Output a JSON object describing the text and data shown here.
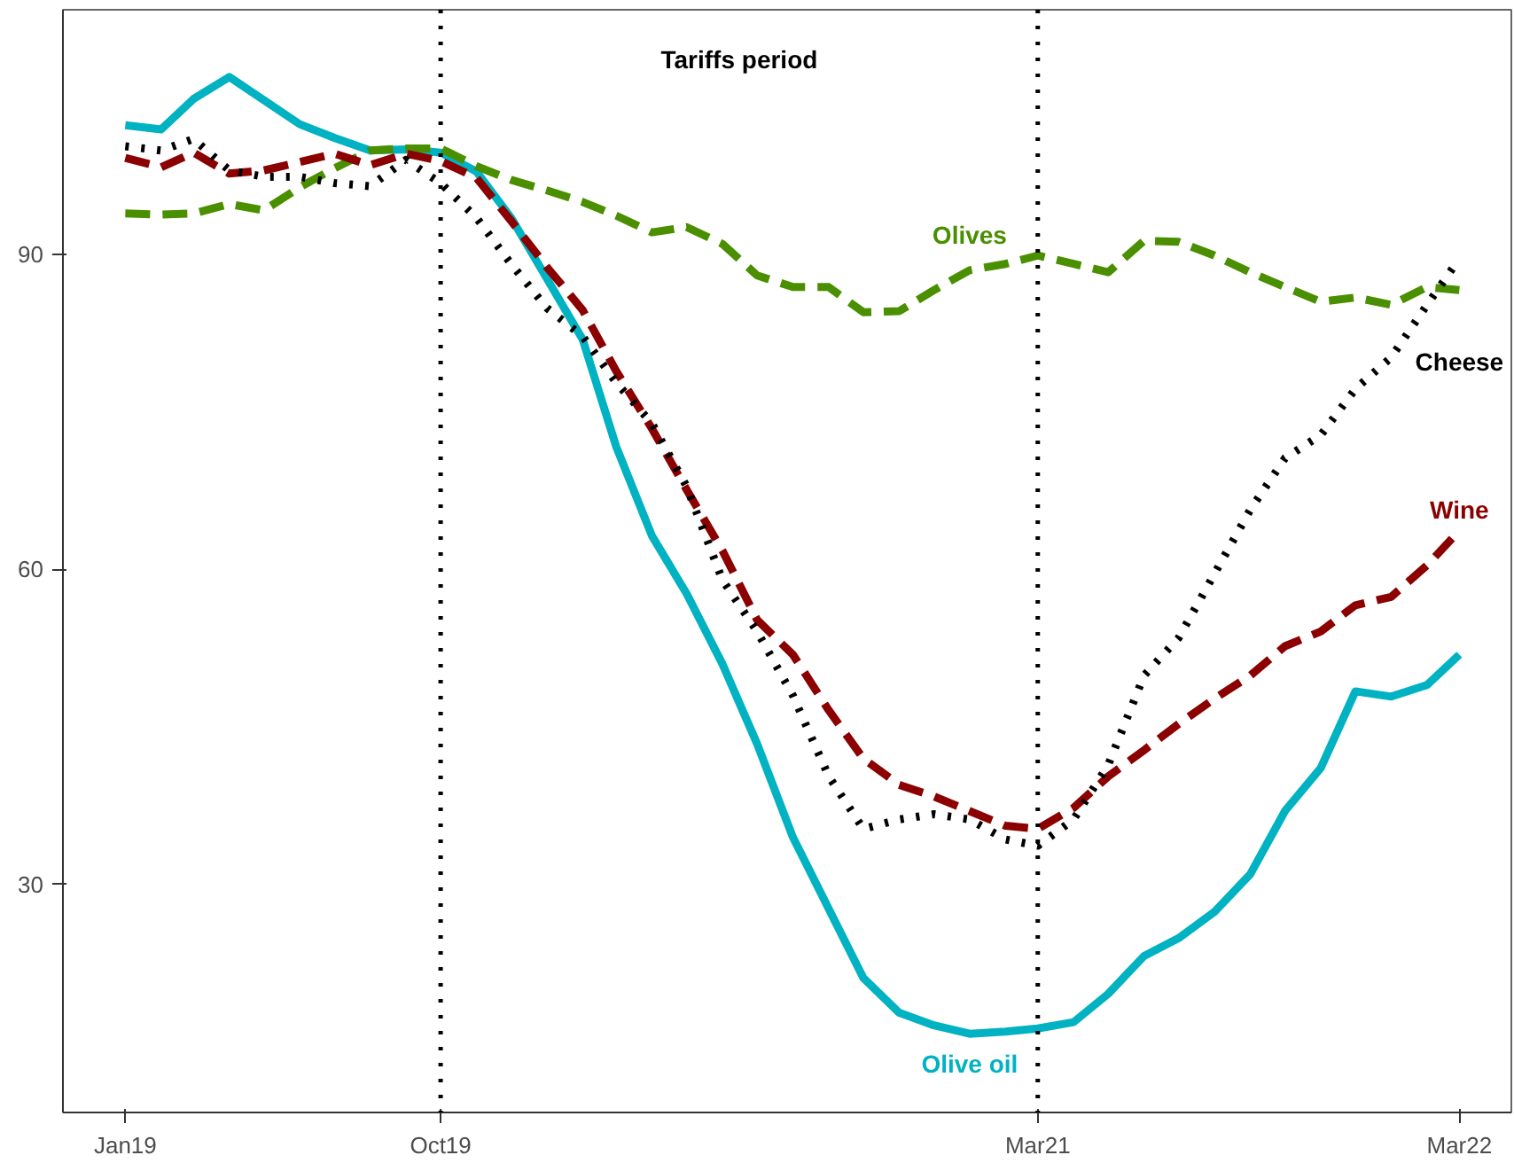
{
  "chart_data": {
    "type": "line",
    "x": [
      "2019-01",
      "2019-02",
      "2019-03",
      "2019-04",
      "2019-05",
      "2019-06",
      "2019-07",
      "2019-08",
      "2019-09",
      "2019-10",
      "2019-11",
      "2019-12",
      "2020-01",
      "2020-02",
      "2020-03",
      "2020-04",
      "2020-05",
      "2020-06",
      "2020-07",
      "2020-08",
      "2020-09",
      "2020-10",
      "2020-11",
      "2020-12",
      "2021-01",
      "2021-02",
      "2021-03",
      "2021-04",
      "2021-05",
      "2021-06",
      "2021-07",
      "2021-08",
      "2021-09",
      "2021-10",
      "2021-11",
      "2021-12",
      "2022-01",
      "2022-02",
      "2022-03"
    ],
    "series": [
      {
        "name": "Olive oil",
        "color": "#00b2c2",
        "line_style": "solid",
        "values": [
          102.3,
          101.9,
          104.8,
          106.9,
          104.7,
          102.4,
          101.1,
          99.9,
          100.0,
          99.7,
          97.9,
          93.5,
          87.7,
          81.9,
          71.7,
          63.2,
          57.7,
          51.0,
          43.4,
          34.5,
          27.7,
          21.1,
          17.8,
          16.6,
          15.8,
          16.0,
          16.3,
          16.9,
          19.6,
          23.2,
          24.9,
          27.4,
          31.0,
          37.0,
          41.1,
          48.4,
          47.9,
          49.0,
          51.9
        ]
      },
      {
        "name": "Olives",
        "color": "#4a8f00",
        "line_style": "dashed",
        "values": [
          93.9,
          93.8,
          93.9,
          94.8,
          94.2,
          96.4,
          98.2,
          99.9,
          100.1,
          100.1,
          98.4,
          97.1,
          96.1,
          95.0,
          93.7,
          92.1,
          92.6,
          91.0,
          88.0,
          86.9,
          86.9,
          84.5,
          84.6,
          86.6,
          88.5,
          89.1,
          89.9,
          89.1,
          88.3,
          91.3,
          91.2,
          89.9,
          88.3,
          86.9,
          85.5,
          85.9,
          85.2,
          86.9,
          86.6
        ]
      },
      {
        "name": "Wine",
        "color": "#8b0000",
        "line_style": "dashed",
        "values": [
          99.2,
          98.3,
          99.7,
          97.7,
          98.0,
          98.8,
          99.6,
          98.5,
          99.6,
          98.9,
          97.3,
          93.2,
          88.8,
          84.7,
          78.9,
          73.4,
          67.6,
          61.8,
          55.2,
          51.9,
          46.6,
          42.0,
          39.5,
          38.4,
          37.0,
          35.6,
          35.3,
          37.3,
          40.3,
          42.8,
          45.3,
          47.7,
          49.9,
          52.7,
          54.1,
          56.6,
          57.4,
          60.4,
          63.7
        ]
      },
      {
        "name": "Cheese",
        "color": "#000000",
        "line_style": "dotted",
        "values": [
          100.3,
          99.9,
          101.0,
          98.0,
          97.4,
          97.4,
          96.8,
          96.5,
          99.0,
          96.8,
          93.5,
          89.1,
          84.9,
          82.2,
          77.8,
          73.9,
          67.9,
          59.0,
          54.1,
          48.0,
          40.3,
          35.3,
          36.2,
          36.7,
          36.2,
          34.3,
          33.7,
          36.2,
          41.4,
          49.9,
          53.5,
          59.6,
          65.7,
          70.6,
          72.8,
          77.2,
          80.2,
          85.2,
          89.6
        ]
      }
    ],
    "xlim": [
      "2018-11-08",
      "2022-04-15"
    ],
    "xticks": [
      {
        "value": "2019-01",
        "label": "Jan19"
      },
      {
        "value": "2019-10",
        "label": "Oct19"
      },
      {
        "value": "2021-03",
        "label": "Mar21"
      },
      {
        "value": "2022-03",
        "label": "Mar22"
      }
    ],
    "ylim": [
      8.3,
      113.3
    ],
    "yticks": [
      30,
      60,
      90
    ],
    "ref_lines": [
      {
        "axis": "x",
        "value": "2019-10",
        "color": "#000000",
        "line_style": "dotted"
      },
      {
        "axis": "x",
        "value": "2021-03",
        "color": "#000000",
        "line_style": "dotted"
      }
    ],
    "annotations": [
      "Tariffs period"
    ],
    "grid": false
  }
}
